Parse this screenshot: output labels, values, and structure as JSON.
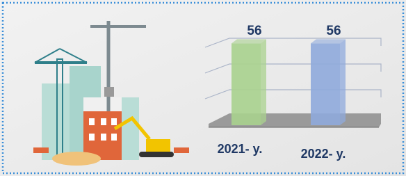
{
  "chart_data": {
    "type": "bar3d",
    "categories": [
      "2021- y.",
      "2022- y."
    ],
    "values": [
      56,
      56
    ],
    "colors": [
      "#a9d18e",
      "#8faadc"
    ],
    "ylim": [
      0,
      60
    ]
  }
}
